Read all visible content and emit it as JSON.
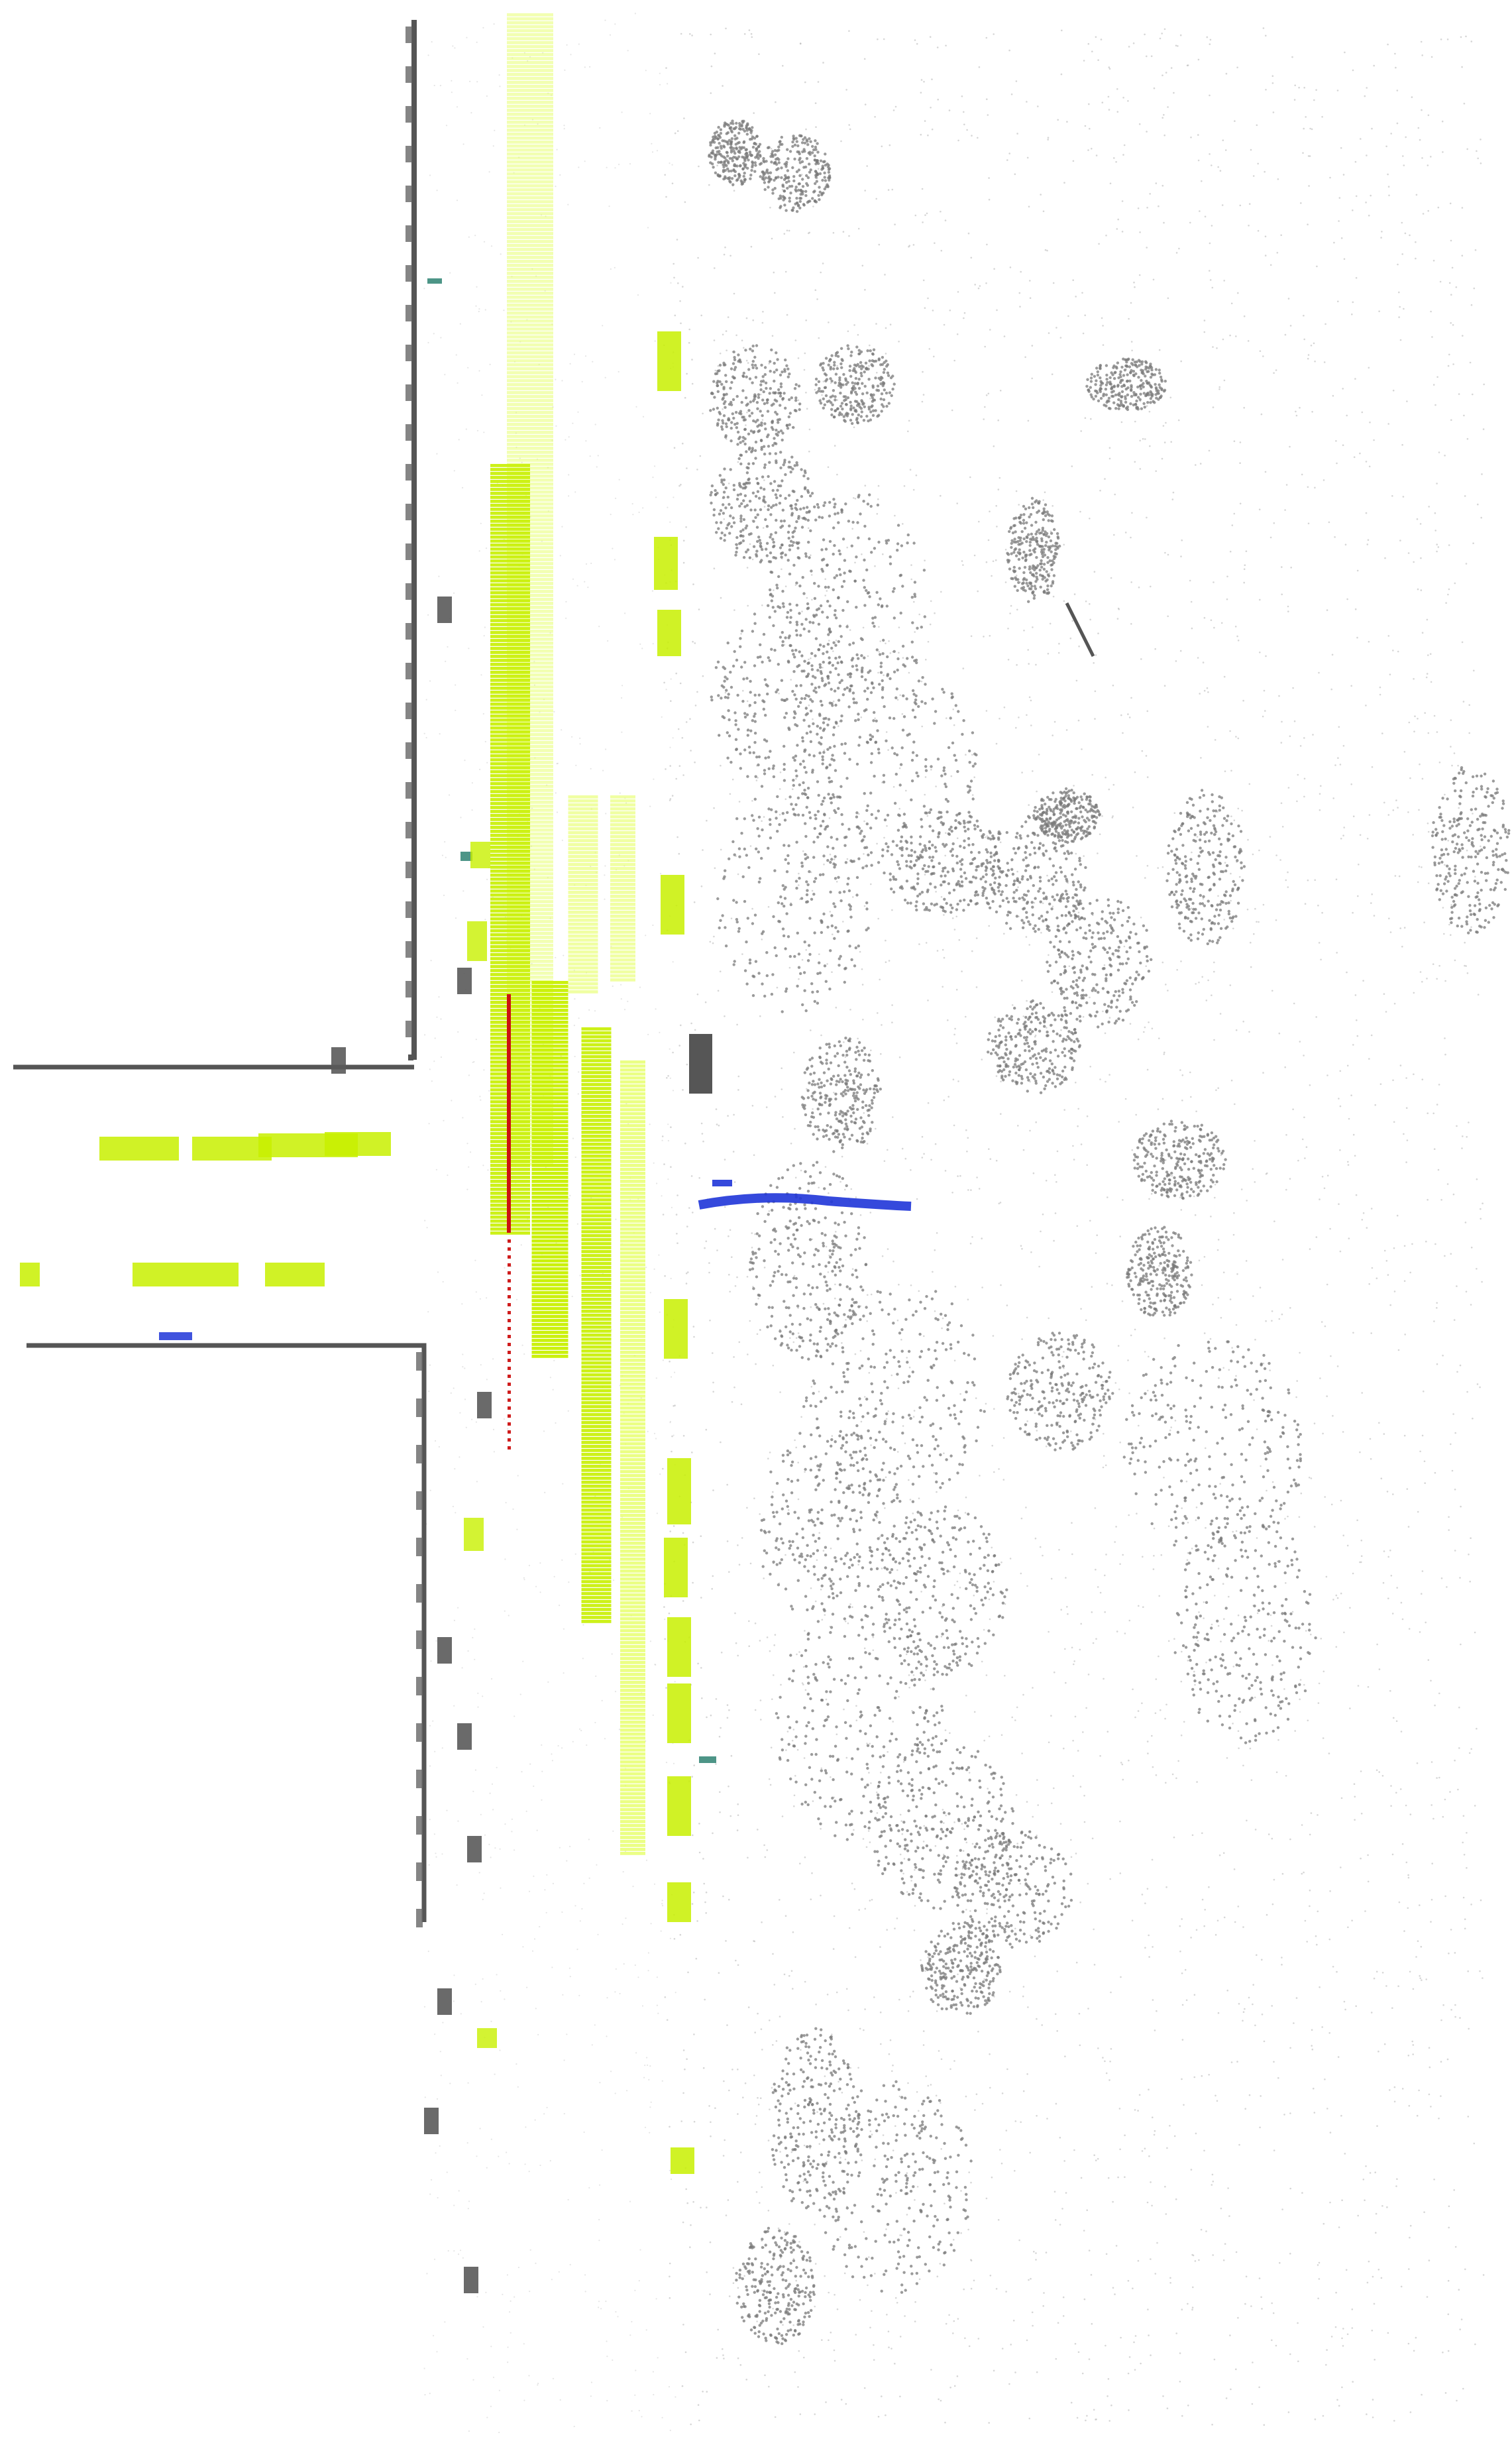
{
  "scene": {
    "kind": "lidar point cloud, top-down bird's-eye view of a road intersection",
    "background_color": "#ffffff",
    "class_colors": {
      "vehicle": "#c8f000",
      "vehicle_dim": "#e6ff66",
      "static_structure": "#6f6f6f",
      "vegetation": "#7a7a7a",
      "sparse_ground": "#b5b5b5",
      "water_or_marking": "#1f35d8",
      "ego_trajectory": "#cc1111",
      "teal_object": "#3a8a7a"
    }
  }
}
